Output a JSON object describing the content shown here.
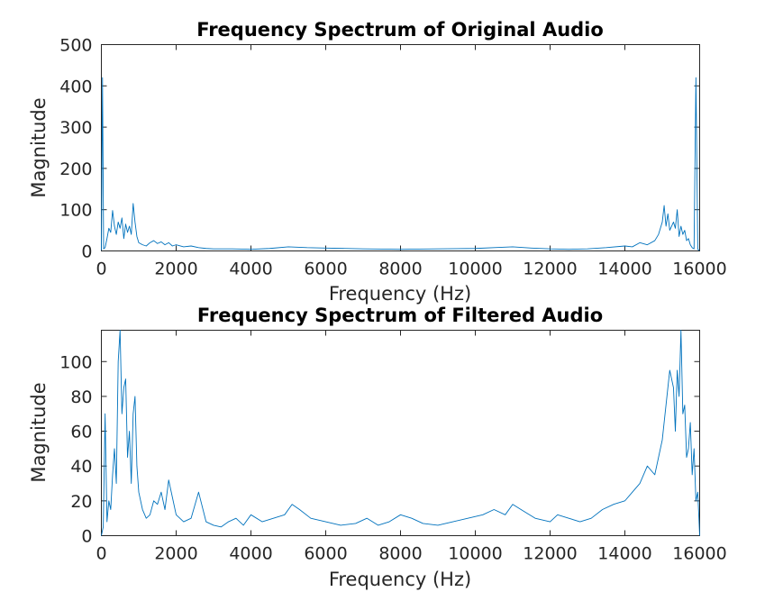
{
  "chart_data": [
    {
      "type": "line",
      "title": "Frequency Spectrum of Original Audio",
      "xlabel": "Frequency (Hz)",
      "ylabel": "Magnitude",
      "xlim": [
        0,
        16000
      ],
      "ylim": [
        0,
        500
      ],
      "xticks": [
        0,
        2000,
        4000,
        6000,
        8000,
        10000,
        12000,
        14000,
        16000
      ],
      "yticks": [
        0,
        100,
        200,
        300,
        400,
        500
      ],
      "grid": false,
      "color": "#0072BD",
      "series": [
        {
          "x": [
            0,
            30,
            60,
            100,
            150,
            200,
            250,
            300,
            350,
            400,
            450,
            500,
            550,
            600,
            650,
            700,
            750,
            800,
            850,
            900,
            950,
            1000,
            1100,
            1200,
            1300,
            1400,
            1500,
            1600,
            1700,
            1800,
            1900,
            2000,
            2200,
            2400,
            2600,
            2800,
            3000,
            3500,
            4000,
            4500,
            5000,
            5500,
            6000,
            7000,
            8000,
            9000,
            10000,
            10500,
            11000,
            11500,
            12000,
            12500,
            13000,
            13500,
            14000,
            14200,
            14400,
            14600,
            14800,
            14900,
            15000,
            15050,
            15100,
            15150,
            15200,
            15250,
            15300,
            15350,
            15400,
            15450,
            15500,
            15550,
            15600,
            15650,
            15700,
            15750,
            15800,
            15850,
            15900,
            15950,
            15970,
            16000
          ],
          "y": [
            2,
            420,
            5,
            8,
            30,
            55,
            45,
            98,
            60,
            40,
            70,
            55,
            80,
            30,
            65,
            45,
            60,
            40,
            115,
            70,
            35,
            20,
            15,
            12,
            20,
            25,
            18,
            22,
            15,
            20,
            12,
            15,
            10,
            12,
            8,
            6,
            5,
            5,
            4,
            6,
            10,
            8,
            7,
            5,
            4,
            5,
            6,
            8,
            10,
            7,
            5,
            4,
            5,
            8,
            12,
            10,
            20,
            15,
            25,
            40,
            70,
            110,
            60,
            90,
            50,
            60,
            70,
            55,
            100,
            35,
            60,
            40,
            50,
            25,
            30,
            15,
            8,
            5,
            420,
            5,
            2,
            2
          ]
        }
      ]
    },
    {
      "type": "line",
      "title": "Frequency Spectrum of Filtered Audio",
      "xlabel": "Frequency (Hz)",
      "ylabel": "Magnitude",
      "xlim": [
        0,
        16000
      ],
      "ylim": [
        0,
        118
      ],
      "xticks": [
        0,
        2000,
        4000,
        6000,
        8000,
        10000,
        12000,
        14000,
        16000
      ],
      "yticks": [
        0,
        20,
        40,
        60,
        80,
        100
      ],
      "grid": false,
      "color": "#0072BD",
      "series": [
        {
          "x": [
            0,
            50,
            100,
            150,
            200,
            250,
            300,
            350,
            400,
            450,
            500,
            550,
            600,
            650,
            700,
            750,
            800,
            850,
            900,
            950,
            1000,
            1100,
            1200,
            1300,
            1400,
            1500,
            1600,
            1700,
            1800,
            1900,
            2000,
            2200,
            2400,
            2600,
            2800,
            3000,
            3200,
            3400,
            3600,
            3800,
            4000,
            4300,
            4600,
            4900,
            5100,
            5300,
            5600,
            6000,
            6400,
            6800,
            7100,
            7400,
            7700,
            8000,
            8300,
            8600,
            9000,
            9400,
            9800,
            10200,
            10500,
            10800,
            11000,
            11300,
            11600,
            12000,
            12200,
            12500,
            12800,
            13100,
            13400,
            13700,
            14000,
            14200,
            14400,
            14600,
            14800,
            15000,
            15100,
            15200,
            15300,
            15350,
            15400,
            15450,
            15500,
            15550,
            15600,
            15650,
            15700,
            15750,
            15800,
            15850,
            15900,
            15950,
            16000
          ],
          "y": [
            0,
            5,
            70,
            8,
            20,
            15,
            35,
            50,
            30,
            100,
            118,
            70,
            85,
            90,
            45,
            60,
            30,
            70,
            80,
            40,
            25,
            15,
            10,
            12,
            20,
            18,
            25,
            15,
            32,
            22,
            12,
            8,
            10,
            25,
            8,
            6,
            5,
            8,
            10,
            6,
            12,
            8,
            10,
            12,
            18,
            15,
            10,
            8,
            6,
            7,
            10,
            6,
            8,
            12,
            10,
            7,
            6,
            8,
            10,
            12,
            15,
            12,
            18,
            14,
            10,
            8,
            12,
            10,
            8,
            10,
            15,
            18,
            20,
            25,
            30,
            40,
            35,
            55,
            75,
            95,
            85,
            60,
            95,
            80,
            118,
            70,
            75,
            45,
            50,
            65,
            35,
            50,
            20,
            25,
            0
          ]
        }
      ]
    }
  ]
}
